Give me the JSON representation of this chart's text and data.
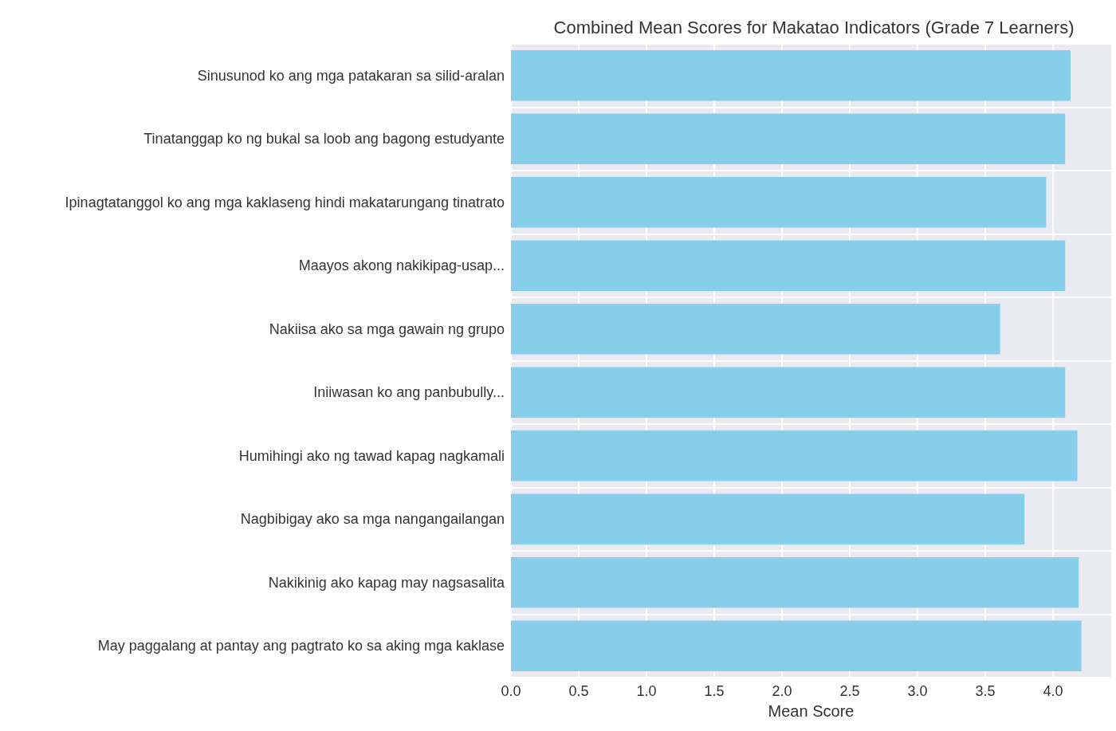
{
  "chart_data": {
    "type": "bar",
    "orientation": "horizontal",
    "title": "Combined Mean Scores for Makatao Indicators (Grade 7 Learners)",
    "xlabel": "Mean Score",
    "categories": [
      "Sinusunod ko ang mga patakaran sa silid-aralan",
      "Tinatanggap ko ng bukal sa loob ang bagong estudyante",
      "Ipinagtatanggol ko ang mga kaklaseng hindi makatarungang tinatrato",
      "Maayos akong nakikipag-usap...",
      "Nakiisa ako sa mga gawain ng grupo",
      "Iniiwasan ko ang panbubully...",
      "Humihingi ako ng tawad kapag nagkamali",
      "Nagbibigay ako sa mga nangangailangan",
      "Nakikinig ako kapag may nagsasalita",
      "May paggalang at pantay ang pagtrato ko sa aking mga kaklase"
    ],
    "values": [
      4.13,
      4.09,
      3.95,
      4.09,
      3.61,
      4.09,
      4.18,
      3.79,
      4.19,
      4.21
    ],
    "color": "#87ceeb",
    "xlim": [
      0,
      4.43
    ],
    "xticks": [
      {
        "value": 0,
        "label": "0.0"
      },
      0.5,
      {
        "value": 1,
        "label": "1.0"
      },
      1.5,
      {
        "value": 2,
        "label": "2.0"
      },
      2.5,
      {
        "value": 3,
        "label": "3.0"
      },
      3.5,
      {
        "value": 4,
        "label": "4.0"
      }
    ],
    "grid": true
  }
}
